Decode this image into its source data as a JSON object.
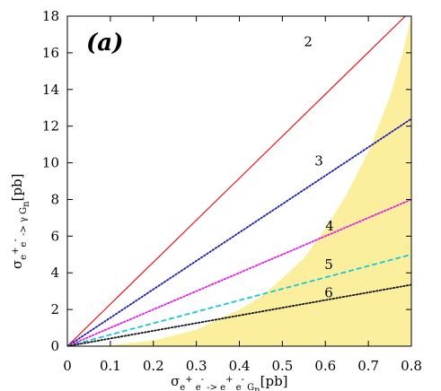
{
  "chart_data": {
    "type": "line",
    "panel_label": "(a)",
    "xlim": [
      0,
      0.8
    ],
    "ylim": [
      0,
      18
    ],
    "x_ticks": [
      "0",
      "0.1",
      "0.2",
      "0.3",
      "0.4",
      "0.5",
      "0.6",
      "0.7",
      "0.8"
    ],
    "y_ticks": [
      "0",
      "2",
      "4",
      "6",
      "8",
      "10",
      "12",
      "14",
      "16",
      "18"
    ],
    "xlabel": {
      "sigma": "σ",
      "sub1": "e",
      "sup1": "+",
      "sub2": " e",
      "sup2": "-",
      "sub3": " -> e",
      "sup3": "+",
      "sub4": " e",
      "sup4": "-",
      "sub5": " G",
      "sub6": "n",
      "unit": "[pb]"
    },
    "ylabel": {
      "sigma": "σ",
      "sub1": "e",
      "sup1": "+",
      "sub2": "e",
      "sup2": "-",
      "sub3": " -> γ G",
      "sub4": "n",
      "unit": "[pb]"
    },
    "series": [
      {
        "label": "2",
        "color": "#e8141c",
        "dash": "solid",
        "slope": 22.9,
        "label_at": [
          0.56,
          16.6
        ],
        "points": [
          [
            0,
            0
          ],
          [
            0.786,
            18
          ]
        ]
      },
      {
        "label": "3",
        "color": "#1b1bb4",
        "dash": "dotted",
        "slope": 15.5,
        "label_at": [
          0.585,
          10.1
        ],
        "points": [
          [
            0,
            0
          ],
          [
            0.8,
            12.4
          ]
        ]
      },
      {
        "label": "4",
        "color": "#e619e6",
        "dash": "dotted",
        "slope": 10.0,
        "label_at": [
          0.61,
          6.55
        ],
        "points": [
          [
            0,
            0
          ],
          [
            0.8,
            8.0
          ]
        ]
      },
      {
        "label": "5",
        "color": "#17c7d6",
        "dash": "dashed",
        "slope": 6.3,
        "label_at": [
          0.608,
          4.45
        ],
        "points": [
          [
            0,
            0
          ],
          [
            0.8,
            5.0
          ]
        ]
      },
      {
        "label": "6",
        "color": "#111111",
        "dash": "dotted",
        "slope": 4.2,
        "label_at": [
          0.608,
          2.9
        ],
        "points": [
          [
            0,
            0
          ],
          [
            0.8,
            3.35
          ]
        ]
      }
    ],
    "region": {
      "color": "#fbef9e",
      "boundary": [
        [
          0,
          0
        ],
        [
          0.1,
          0.05
        ],
        [
          0.2,
          0.3
        ],
        [
          0.3,
          0.9
        ],
        [
          0.4,
          2.0
        ],
        [
          0.45,
          2.7
        ],
        [
          0.5,
          3.7
        ],
        [
          0.55,
          4.8
        ],
        [
          0.6,
          6.4
        ],
        [
          0.65,
          8.3
        ],
        [
          0.7,
          10.6
        ],
        [
          0.75,
          13.6
        ],
        [
          0.78,
          16.0
        ],
        [
          0.8,
          18.0
        ]
      ]
    },
    "grid": false
  }
}
